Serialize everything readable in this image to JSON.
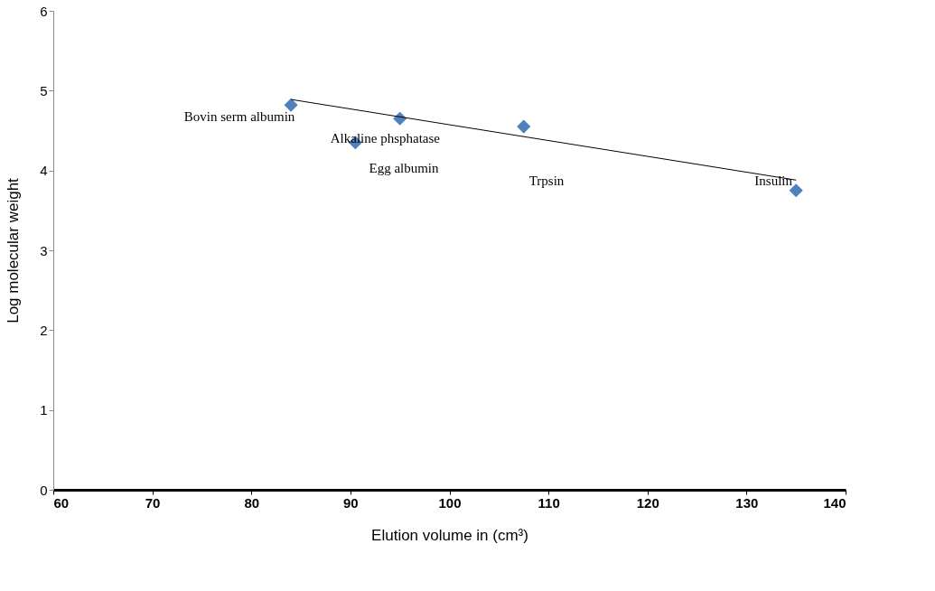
{
  "chart_data": {
    "type": "scatter",
    "xlabel": "Elution volume in (cm³)",
    "ylabel": "Log molecular weight",
    "series": [
      {
        "color": "#4f81bd",
        "marker": "diamond",
        "x": [
          84,
          90.5,
          95,
          107.5,
          135
        ],
        "values": [
          4.82,
          4.35,
          4.65,
          4.55,
          3.75
        ]
      },
      {
        "type": "line",
        "color": "#000000",
        "marker": "none",
        "x": [
          84,
          135
        ],
        "values": [
          4.89,
          3.88
        ]
      }
    ],
    "annotations": [
      {
        "text": "Bovin serm albumin",
        "x": 84,
        "y": 4.82
      },
      {
        "text": "Alkaline phsphatase",
        "x": 90.5,
        "y": 4.35
      },
      "Egg albumin",
      "Trpsin",
      {
        "text": "Insulin",
        "x": 135,
        "y": 3.75
      }
    ],
    "xlim": [
      60,
      140
    ],
    "xticks": [
      60,
      70,
      80,
      90,
      100,
      110,
      120,
      130,
      140
    ],
    "ylim": [
      0,
      6
    ],
    "yticks": [
      0,
      1,
      2,
      3,
      4,
      5,
      6
    ],
    "grid": false,
    "legend": false
  }
}
